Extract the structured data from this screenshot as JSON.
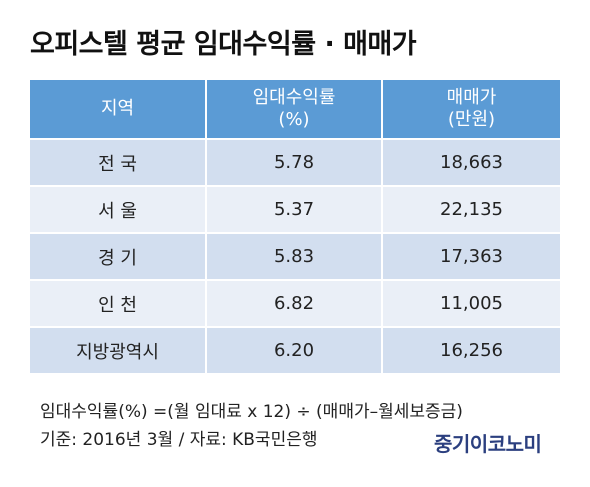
{
  "title": "오피스텔 평균 임대수익률 · 매매가",
  "table": {
    "headers": [
      {
        "line1": "지역",
        "line2": ""
      },
      {
        "line1": "임대수익률",
        "line2": "(%)"
      },
      {
        "line1": "매매가",
        "line2": "(만원)"
      }
    ],
    "rows": [
      {
        "region": "전 국",
        "yield": "5.78",
        "price": "18,663"
      },
      {
        "region": "서 울",
        "yield": "5.37",
        "price": "22,135"
      },
      {
        "region": "경 기",
        "yield": "5.83",
        "price": "17,363"
      },
      {
        "region": "인 천",
        "yield": "6.82",
        "price": "11,005"
      },
      {
        "region": "지방광역시",
        "yield": "6.20",
        "price": "16,256"
      }
    ]
  },
  "notes": {
    "formula": "임대수익률(%) =(월 임대료 x 12) ÷ (매매가–월세보증금)",
    "source": "기준: 2016년 3월 / 자료: KB국민은행"
  },
  "logo": {
    "text": "중기이코노미"
  },
  "colors": {
    "header_bg": "#5b9bd5",
    "row_odd": "#d2deef",
    "row_even": "#eaeff7",
    "logo": "#2b3f7f"
  }
}
